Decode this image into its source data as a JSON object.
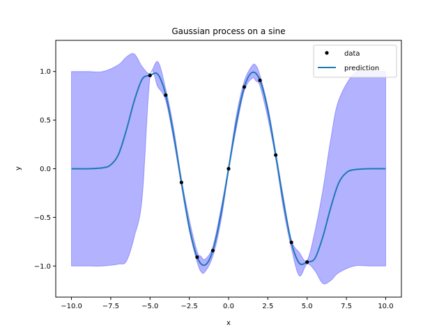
{
  "chart_data": {
    "type": "line",
    "title": "Gaussian process on a sine",
    "xlabel": "x",
    "ylabel": "y",
    "xlim": [
      -11,
      11
    ],
    "ylim": [
      -1.32,
      1.32
    ],
    "xticks": [
      -10,
      -7.5,
      -5,
      -2.5,
      0,
      2.5,
      5,
      7.5,
      10
    ],
    "xtick_labels": [
      "−10.0",
      "−7.5",
      "−5.0",
      "−2.5",
      "0.0",
      "2.5",
      "5.0",
      "7.5",
      "10.0"
    ],
    "yticks": [
      -1.0,
      -0.5,
      0.0,
      0.5,
      1.0
    ],
    "ytick_labels": [
      "−1.0",
      "−0.5",
      "0.0",
      "0.5",
      "1.0"
    ],
    "grid": false,
    "legend_position": "top-right",
    "series": [
      {
        "name": "data",
        "kind": "scatter",
        "color": "#000000",
        "x": [
          -5,
          -4,
          -3,
          -2,
          -1,
          0,
          1,
          2,
          3,
          4,
          5
        ],
        "y": [
          0.959,
          0.757,
          -0.141,
          -0.909,
          -0.841,
          0.0,
          0.841,
          0.909,
          0.141,
          -0.757,
          -0.959
        ]
      },
      {
        "name": "prediction",
        "kind": "line",
        "color": "#1f77b4",
        "x": [
          -10,
          -9,
          -8,
          -7.5,
          -7,
          -6.5,
          -6,
          -5.5,
          -5,
          -4.5,
          -4,
          -3.5,
          -3,
          -2.5,
          -2,
          -1.5,
          -1,
          -0.5,
          0,
          0.5,
          1,
          1.5,
          2,
          2.5,
          3,
          3.5,
          4,
          4.5,
          5,
          5.5,
          6,
          6.5,
          7,
          7.5,
          8,
          9,
          10
        ],
        "y": [
          0.0,
          0.0,
          0.01,
          0.04,
          0.15,
          0.4,
          0.7,
          0.92,
          0.96,
          0.97,
          0.76,
          0.35,
          -0.14,
          -0.6,
          -0.91,
          -0.99,
          -0.84,
          -0.48,
          0.0,
          0.48,
          0.84,
          0.99,
          0.91,
          0.6,
          0.14,
          -0.35,
          -0.76,
          -0.97,
          -0.96,
          -0.92,
          -0.7,
          -0.4,
          -0.15,
          -0.04,
          -0.01,
          0.0,
          0.0
        ]
      }
    ],
    "band": {
      "color": "#0000ff",
      "x": [
        -10,
        -9,
        -8,
        -7,
        -6.5,
        -6,
        -5.5,
        -5,
        -4.5,
        -4,
        -3.5,
        -3,
        -2.5,
        -2,
        -1.75,
        -1.5,
        -1,
        -0.5,
        0,
        0.5,
        1,
        1.5,
        1.75,
        2,
        2.5,
        3,
        3.5,
        4,
        4.5,
        5,
        5.5,
        6,
        6.5,
        7,
        8,
        9,
        10
      ],
      "upper": [
        1.0,
        1.0,
        1.0,
        1.07,
        1.15,
        1.18,
        1.05,
        0.98,
        1.1,
        0.82,
        0.42,
        -0.1,
        -0.52,
        -0.85,
        -0.9,
        -0.93,
        -0.8,
        -0.42,
        0.03,
        0.55,
        0.9,
        1.06,
        1.06,
        0.96,
        0.64,
        0.18,
        -0.3,
        -0.73,
        -0.86,
        -0.94,
        -0.64,
        -0.22,
        0.3,
        0.7,
        0.98,
        1.0,
        1.0
      ],
      "lower": [
        -1.0,
        -1.0,
        -1.0,
        -0.98,
        -0.95,
        -0.7,
        -0.3,
        0.94,
        0.84,
        0.7,
        0.3,
        -0.18,
        -0.64,
        -0.96,
        -1.06,
        -1.06,
        -0.9,
        -0.55,
        -0.03,
        0.42,
        0.8,
        0.93,
        0.9,
        0.85,
        0.52,
        0.1,
        -0.42,
        -0.82,
        -1.1,
        -0.98,
        -1.05,
        -1.18,
        -1.15,
        -1.07,
        -1.0,
        -1.0,
        -1.0
      ]
    }
  }
}
